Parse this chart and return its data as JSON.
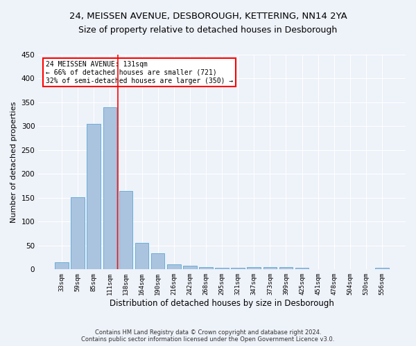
{
  "title": "24, MEISSEN AVENUE, DESBOROUGH, KETTERING, NN14 2YA",
  "subtitle": "Size of property relative to detached houses in Desborough",
  "xlabel": "Distribution of detached houses by size in Desborough",
  "ylabel": "Number of detached properties",
  "categories": [
    "33sqm",
    "59sqm",
    "85sqm",
    "111sqm",
    "138sqm",
    "164sqm",
    "190sqm",
    "216sqm",
    "242sqm",
    "268sqm",
    "295sqm",
    "321sqm",
    "347sqm",
    "373sqm",
    "399sqm",
    "425sqm",
    "451sqm",
    "478sqm",
    "504sqm",
    "530sqm",
    "556sqm"
  ],
  "bar_heights": [
    15,
    152,
    305,
    340,
    165,
    56,
    34,
    10,
    8,
    5,
    3,
    3,
    5,
    5,
    5,
    3,
    0,
    0,
    0,
    0,
    4
  ],
  "bar_color": "#aac4e0",
  "bar_edgecolor": "#6baed6",
  "background_color": "#eef2f9",
  "grid_color": "#ffffff",
  "vline_color": "red",
  "annotation_text": "24 MEISSEN AVENUE: 131sqm\n← 66% of detached houses are smaller (721)\n32% of semi-detached houses are larger (350) →",
  "annotation_box_color": "white",
  "annotation_box_edgecolor": "red",
  "ylim": [
    0,
    450
  ],
  "yticks": [
    0,
    50,
    100,
    150,
    200,
    250,
    300,
    350,
    400,
    450
  ],
  "footnote": "Contains HM Land Registry data © Crown copyright and database right 2024.\nContains public sector information licensed under the Open Government Licence v3.0.",
  "title_fontsize": 9.5,
  "subtitle_fontsize": 9,
  "xlabel_fontsize": 8.5,
  "ylabel_fontsize": 8
}
